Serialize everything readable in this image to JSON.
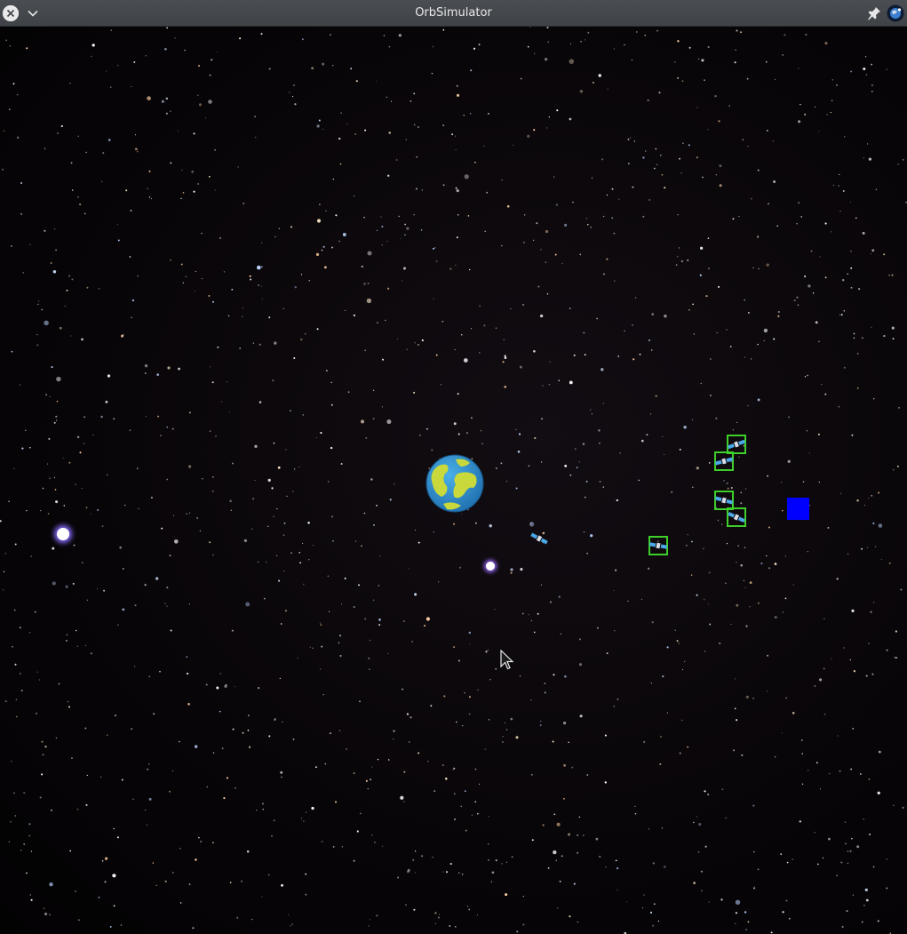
{
  "window": {
    "title": "OrbSimulator",
    "icons": [
      "close-icon",
      "chevron-down-icon",
      "pin-icon",
      "app-icon"
    ]
  },
  "scene": {
    "background": "starfield",
    "objects": [
      "earth",
      "satellite",
      "satellite-in-green-target-box",
      "satellite-in-green-target-box",
      "satellite-in-green-target-box",
      "satellite-in-green-target-box",
      "satellite-in-green-target-box",
      "blue-square",
      "bright-star",
      "bright-star",
      "mouse-cursor"
    ],
    "colors": {
      "target_box": "#3ecf2a",
      "blue_square": "#0000ff",
      "earth_ocean": "#2f8fd0",
      "earth_land": "#c9d83a",
      "satellite": "#4aa8e8"
    }
  }
}
